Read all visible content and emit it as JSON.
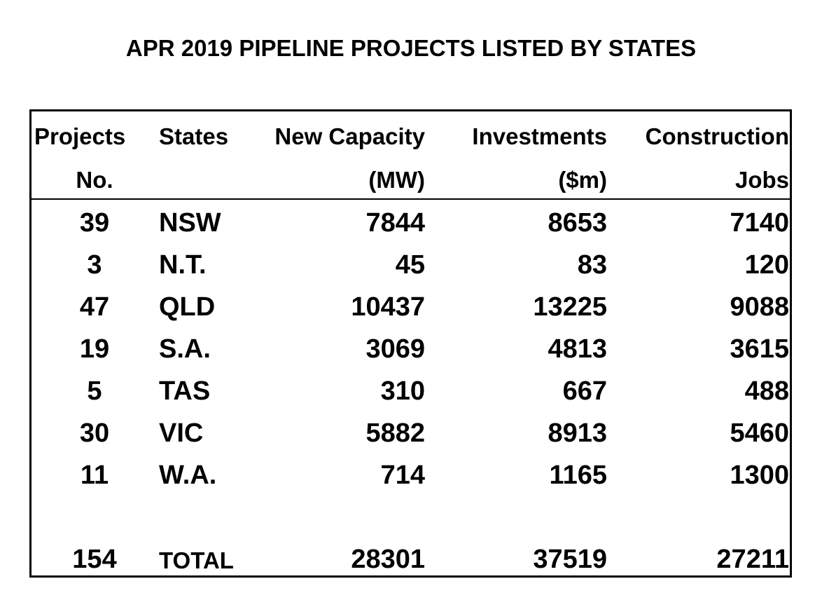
{
  "title": "APR 2019 PIPELINE PROJECTS LISTED BY STATES",
  "table": {
    "headers": [
      {
        "line1": "Projects",
        "line2": "No."
      },
      {
        "line1": "States",
        "line2": ""
      },
      {
        "line1": "New Capacity",
        "line2": "(MW)"
      },
      {
        "line1": "Investments",
        "line2": "($m)"
      },
      {
        "line1": "Construction",
        "line2": "Jobs"
      }
    ],
    "rows": [
      [
        "39",
        "NSW",
        "7844",
        "8653",
        "7140"
      ],
      [
        "3",
        "N.T.",
        "45",
        "83",
        "120"
      ],
      [
        "47",
        "QLD",
        "10437",
        "13225",
        "9088"
      ],
      [
        "19",
        "S.A.",
        "3069",
        "4813",
        "3615"
      ],
      [
        "5",
        "TAS",
        "310",
        "667",
        "488"
      ],
      [
        "30",
        "VIC",
        "5882",
        "8913",
        "5460"
      ],
      [
        "11",
        "W.A.",
        "714",
        "1165",
        "1300"
      ]
    ],
    "total": [
      "154",
      "TOTAL",
      "28301",
      "37519",
      "27211"
    ]
  }
}
